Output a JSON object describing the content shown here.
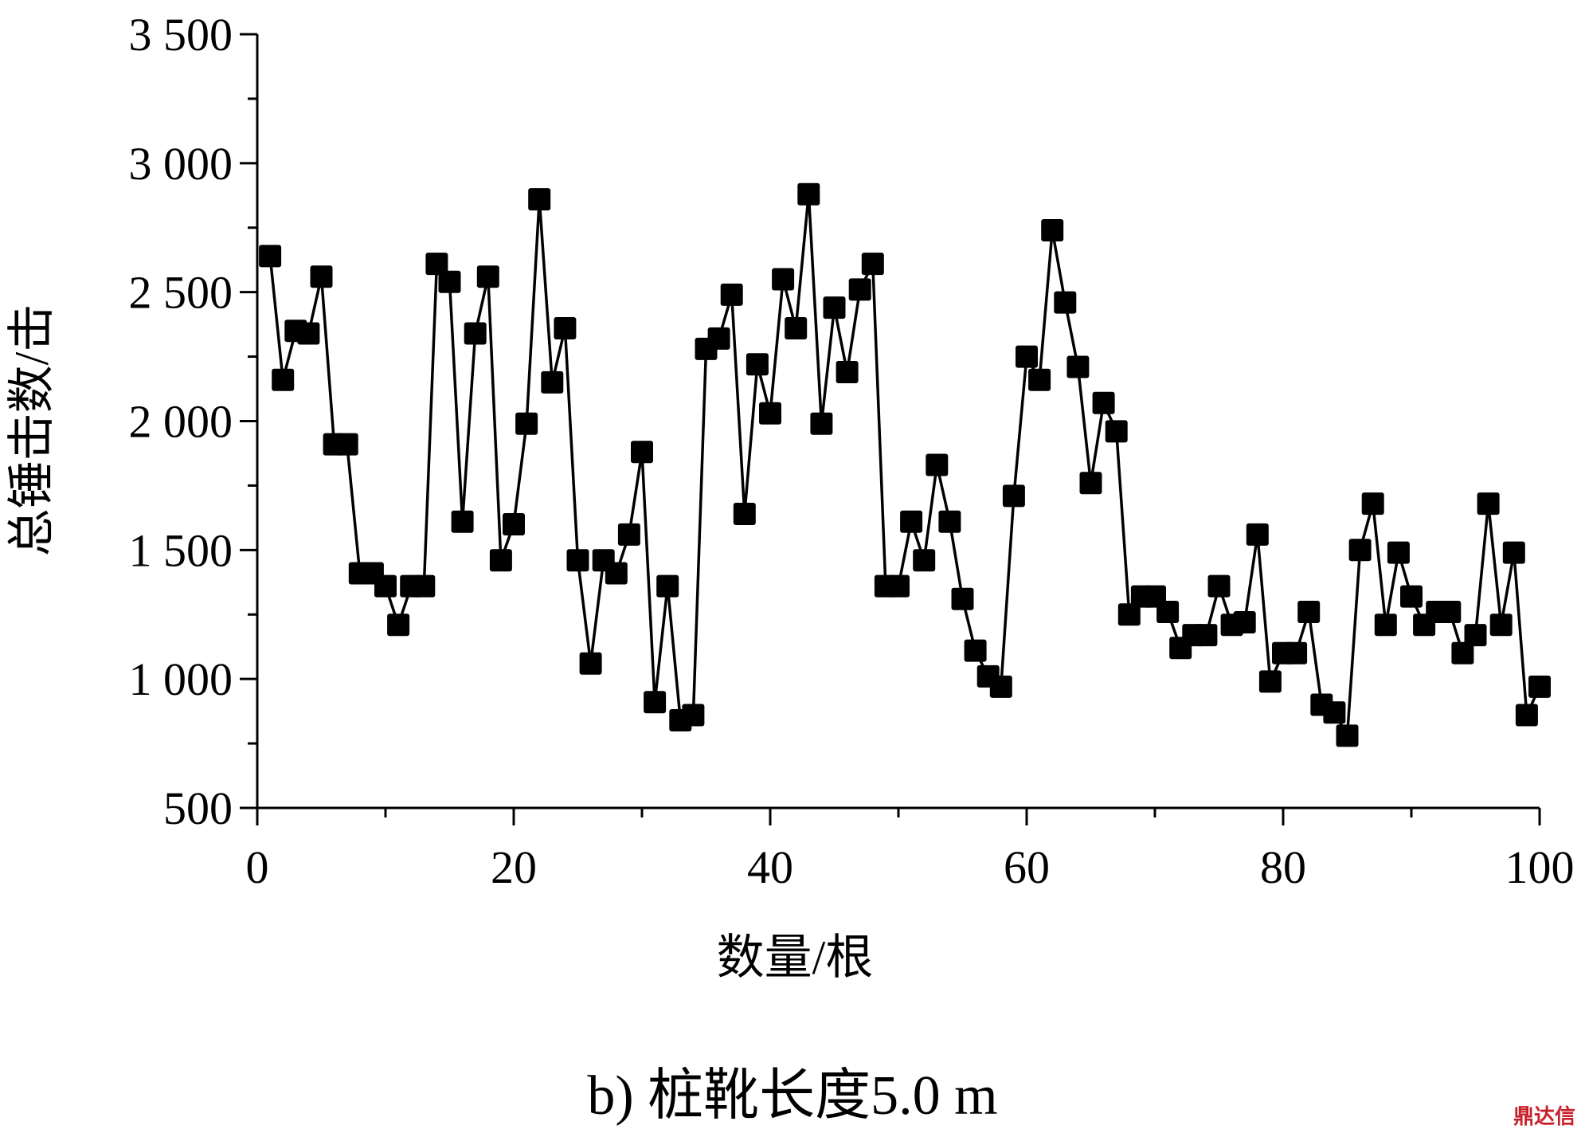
{
  "chart_data": {
    "type": "line",
    "xlabel": "数量/根",
    "ylabel": "总锤击数/击",
    "xlim": [
      0,
      100
    ],
    "ylim": [
      500,
      3500
    ],
    "x_ticks": [
      "0",
      "20",
      "40",
      "60",
      "80",
      "100"
    ],
    "y_ticks": [
      "500",
      "1 000",
      "1 500",
      "2 000",
      "2 500",
      "3 000",
      "3 500"
    ],
    "grid": false,
    "marker": "square",
    "series": [
      {
        "x": [
          1,
          2,
          3,
          4,
          5,
          6,
          7,
          8,
          9,
          10,
          11,
          12,
          13,
          14,
          15,
          16,
          17,
          18,
          19,
          20,
          21,
          22,
          23,
          24,
          25,
          26,
          27,
          28,
          29,
          30,
          31,
          32,
          33,
          34,
          35,
          36,
          37,
          38,
          39,
          40,
          41,
          42,
          43,
          44,
          45,
          46,
          47,
          48,
          49,
          50,
          51,
          52,
          53,
          54,
          55,
          56,
          57,
          58,
          59,
          60,
          61,
          62,
          63,
          64,
          65,
          66,
          67,
          68,
          69,
          70,
          71,
          72,
          73,
          74,
          75,
          76,
          77,
          78,
          79,
          80,
          81,
          82,
          83,
          84,
          85,
          86,
          87,
          88,
          89,
          90,
          91,
          92,
          93,
          94,
          95,
          96,
          97,
          98,
          99,
          100
        ],
        "values": [
          2640,
          2160,
          2350,
          2340,
          2560,
          1910,
          1910,
          1410,
          1410,
          1360,
          1210,
          1360,
          1360,
          2610,
          2540,
          1610,
          2340,
          2560,
          1460,
          1600,
          1990,
          2860,
          2150,
          2360,
          1460,
          1060,
          1460,
          1410,
          1560,
          1880,
          910,
          1360,
          840,
          860,
          2280,
          2320,
          2490,
          1640,
          2220,
          2030,
          2550,
          2360,
          2880,
          1990,
          2440,
          2190,
          2510,
          2610,
          1360,
          1360,
          1610,
          1460,
          1830,
          1610,
          1310,
          1110,
          1010,
          970,
          1710,
          2250,
          2160,
          2740,
          2460,
          2210,
          1760,
          2070,
          1960,
          1250,
          1320,
          1320,
          1260,
          1120,
          1170,
          1170,
          1360,
          1210,
          1220,
          1560,
          990,
          1100,
          1100,
          1260,
          900,
          870,
          780,
          1500,
          1680,
          1210,
          1490,
          1320,
          1210,
          1260,
          1260,
          1100,
          1170,
          1680,
          1210,
          1490,
          860,
          970
        ]
      }
    ],
    "caption": "b) 桩靴长度5.0 m"
  },
  "watermark": "鼎达信"
}
